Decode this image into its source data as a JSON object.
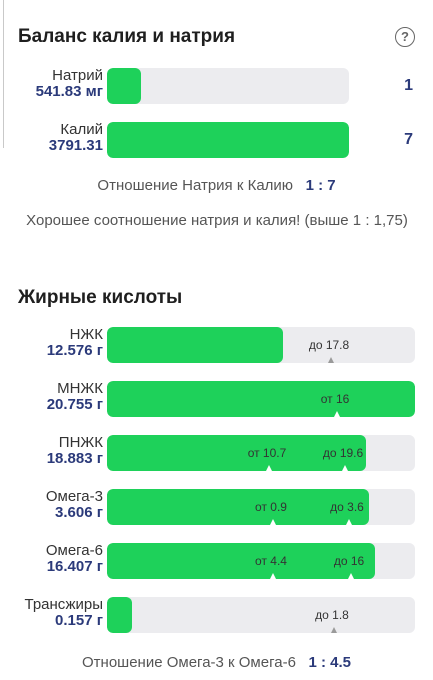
{
  "balance": {
    "title": "Баланс калия и натрия",
    "help_icon": "question-circle-icon",
    "sodium": {
      "name": "Натрий",
      "value": "541.83 мг",
      "score": "1",
      "fill_fraction": 0.14
    },
    "potassium": {
      "name": "Калий",
      "value": "3791.31",
      "score": "7",
      "fill_fraction": 1.0
    },
    "ratio_label": "Отношение Натрия к Калию",
    "ratio_value": "1 : 7",
    "message": "Хорошее соотношение натрия и калия! (выше 1 : 1,75)"
  },
  "fats": {
    "title": "Жирные кислоты",
    "rows": [
      {
        "name": "НЖК",
        "value": "12.576 г",
        "fill_fraction": 0.57,
        "marks": [
          {
            "text": "до 17.8"
          }
        ]
      },
      {
        "name": "МНЖК",
        "value": "20.755 г",
        "fill_fraction": 1.0,
        "marks": [
          {
            "text": "от 16"
          }
        ]
      },
      {
        "name": "ПНЖК",
        "value": "18.883 г",
        "fill_fraction": 0.84,
        "marks": [
          {
            "text": "от 10.7"
          },
          {
            "text": "до 19.6"
          }
        ]
      },
      {
        "name": "Омега-3",
        "value": "3.606 г",
        "fill_fraction": 0.85,
        "marks": [
          {
            "text": "от 0.9"
          },
          {
            "text": "до 3.6"
          }
        ]
      },
      {
        "name": "Омега-6",
        "value": "16.407 г",
        "fill_fraction": 0.87,
        "marks": [
          {
            "text": "от 4.4"
          },
          {
            "text": "до 16"
          }
        ]
      },
      {
        "name": "Трансжиры",
        "value": "0.157 г",
        "fill_fraction": 0.08,
        "marks": [
          {
            "text": "до 1.8"
          }
        ]
      }
    ],
    "ratio_label": "Отношение Омега-3 к Омега-6",
    "ratio_value": "1 : 4.5"
  }
}
